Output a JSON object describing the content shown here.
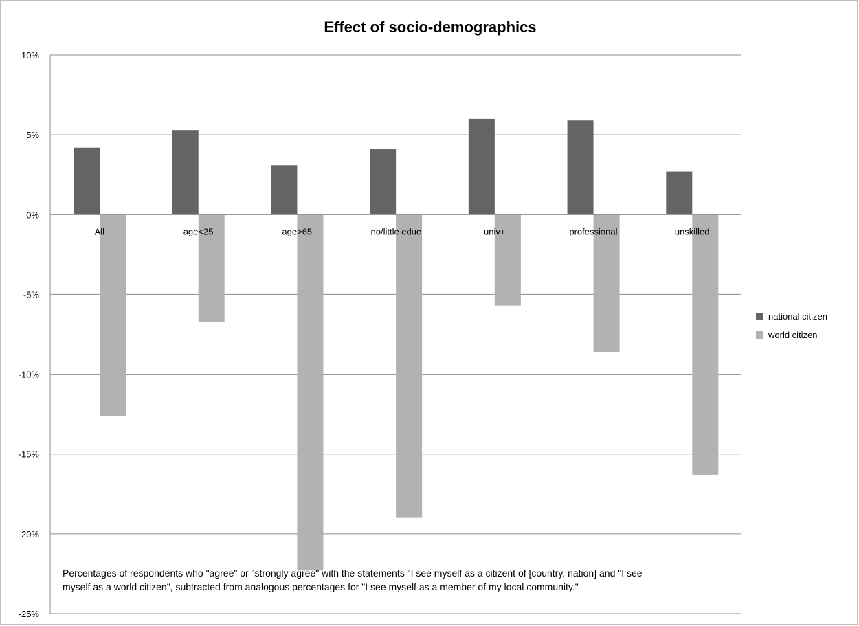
{
  "chart_data": {
    "type": "bar",
    "title": "Effect of socio-demographics",
    "categories": [
      "All",
      "age<25",
      "age>65",
      "no/little educ",
      "univ+",
      "professional",
      "unskilled"
    ],
    "series": [
      {
        "name": "national citizen",
        "color": "#646464",
        "values": [
          4.2,
          5.3,
          3.1,
          4.1,
          6.0,
          5.9,
          2.7
        ]
      },
      {
        "name": "world citizen",
        "color": "#b2b2b2",
        "values": [
          -12.6,
          -6.7,
          -22.3,
          -19.0,
          -5.7,
          -8.6,
          -16.3
        ]
      }
    ],
    "ylim": [
      -25,
      10
    ],
    "yticks": [
      10,
      5,
      0,
      -5,
      -10,
      -15,
      -20,
      -25
    ],
    "ytick_labels": [
      "10%",
      "5%",
      "0%",
      "-5%",
      "-10%",
      "-15%",
      "-20%",
      "-25%"
    ],
    "grid": true,
    "legend_position": "right",
    "xlabel": "",
    "ylabel": "",
    "note_lines": [
      "Percentages  of respondents who \"agree\" or \"strongly agree\" with the statements \"I see myself as a citizent of [country, nation] and \"I see",
      "myself as a world citizen\", subtracted from analogous percentages  for \"I see myself as a member of my local community.\""
    ]
  }
}
